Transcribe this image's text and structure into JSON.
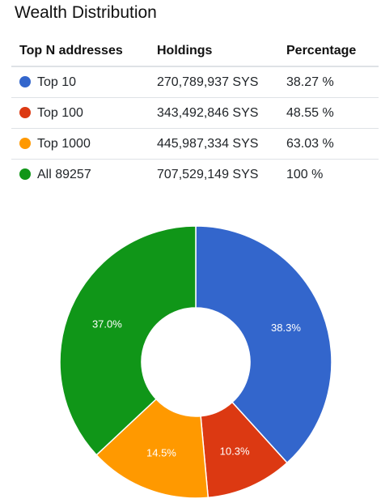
{
  "page": {
    "title": "Wealth Distribution"
  },
  "table": {
    "headers": [
      "Top N addresses",
      "Holdings",
      "Percentage"
    ],
    "rows": [
      {
        "label": "Top 10",
        "holdings": "270,789,937 SYS",
        "percentage": "38.27 %",
        "color": "#3366cc"
      },
      {
        "label": "Top 100",
        "holdings": "343,492,846 SYS",
        "percentage": "48.55 %",
        "color": "#dc3912"
      },
      {
        "label": "Top 1000",
        "holdings": "445,987,334 SYS",
        "percentage": "63.03 %",
        "color": "#ff9900"
      },
      {
        "label": "All 89257",
        "holdings": "707,529,149 SYS",
        "percentage": "100 %",
        "color": "#109618"
      }
    ]
  },
  "chart_data": {
    "type": "pie",
    "donut": true,
    "categories": [
      "Top 10",
      "Top 100",
      "Top 1000",
      "All 89257"
    ],
    "values": [
      38.3,
      10.3,
      14.5,
      37.0
    ],
    "labels": [
      "38.3%",
      "10.3%",
      "14.5%",
      "37.0%"
    ],
    "colors": [
      "#3366cc",
      "#dc3912",
      "#ff9900",
      "#109618"
    ]
  }
}
